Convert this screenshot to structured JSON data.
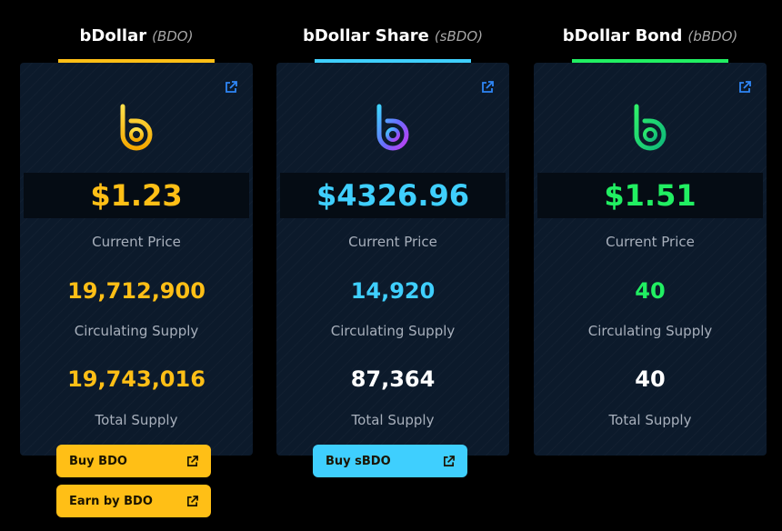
{
  "colors": {
    "bdo": "#ffbf16",
    "sbdo": "#3fcffe",
    "bbdo": "#21ef62",
    "white": "#ffffff"
  },
  "tokens": [
    {
      "name": "bDollar",
      "symbol": "(BDO)",
      "price": "$1.23",
      "price_label": "Current Price",
      "circulating_supply": "19,712,900",
      "circulating_label": "Circulating Supply",
      "total_supply": "19,743,016",
      "total_label": "Total Supply",
      "icon": "bdo-logo-icon",
      "buttons": [
        {
          "label": "Buy BDO",
          "icon": "external-link-icon"
        },
        {
          "label": "Earn by BDO",
          "icon": "external-link-icon"
        }
      ]
    },
    {
      "name": "bDollar Share",
      "symbol": "(sBDO)",
      "price": "$4326.96",
      "price_label": "Current Price",
      "circulating_supply": "14,920",
      "circulating_label": "Circulating Supply",
      "total_supply": "87,364",
      "total_label": "Total Supply",
      "icon": "sbdo-logo-icon",
      "buttons": [
        {
          "label": "Buy sBDO",
          "icon": "external-link-icon"
        }
      ]
    },
    {
      "name": "bDollar Bond",
      "symbol": "(bBDO)",
      "price": "$1.51",
      "price_label": "Current Price",
      "circulating_supply": "40",
      "circulating_label": "Circulating Supply",
      "total_supply": "40",
      "total_label": "Total Supply",
      "icon": "bbdo-logo-icon"
    }
  ]
}
